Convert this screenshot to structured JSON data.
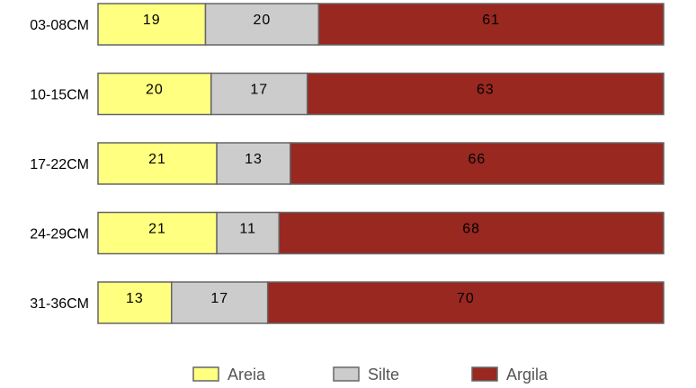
{
  "chart_data": {
    "type": "bar",
    "stacked": true,
    "orientation": "horizontal",
    "categories": [
      "03-08CM",
      "10-15CM",
      "17-22CM",
      "24-29CM",
      "31-36CM"
    ],
    "series": [
      {
        "name": "Areia",
        "values": [
          19,
          20,
          21,
          21,
          13
        ],
        "color": "#FFFF80"
      },
      {
        "name": "Silte",
        "values": [
          20,
          17,
          13,
          11,
          17
        ],
        "color": "#CCCCCC"
      },
      {
        "name": "Argila",
        "values": [
          61,
          63,
          66,
          68,
          70
        ],
        "color": "#982820"
      }
    ],
    "xlim": [
      0,
      100
    ],
    "grid": false,
    "legend_position": "bottom"
  }
}
